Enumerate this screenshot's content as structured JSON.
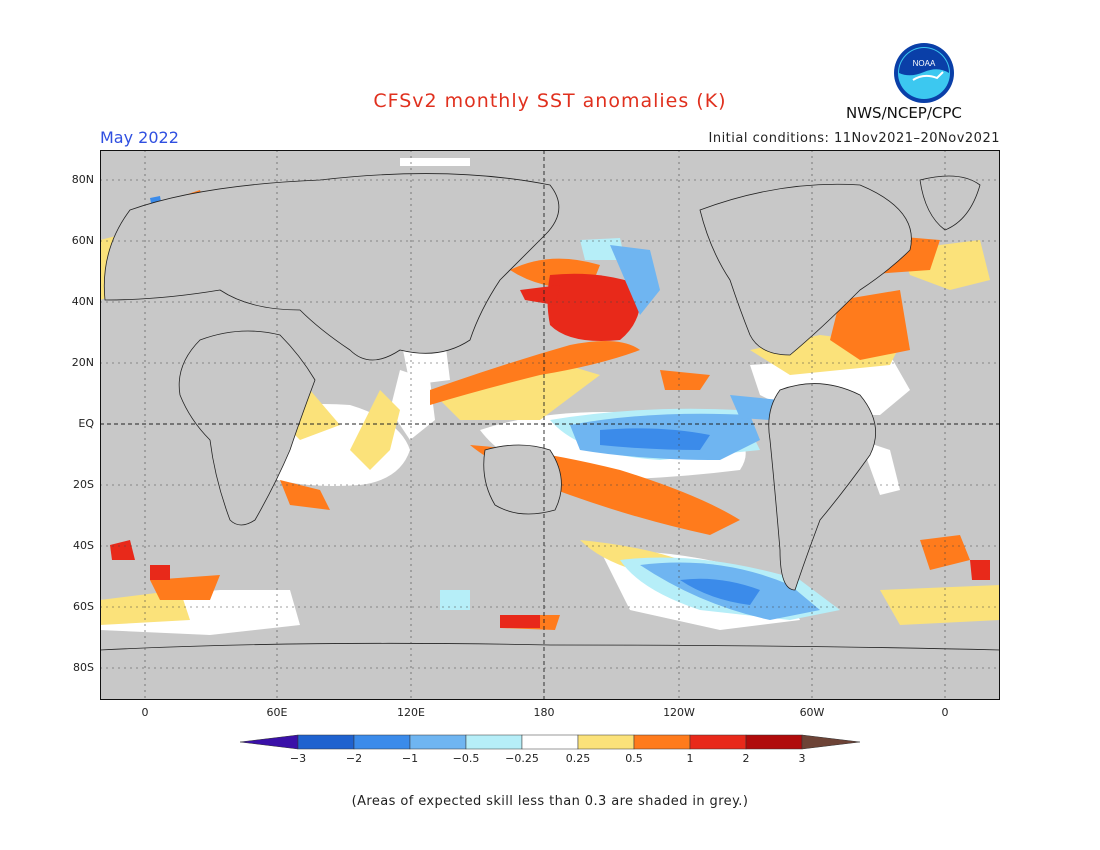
{
  "header": {
    "title": "CFSv2 monthly SST anomalies (K)",
    "target_month": "May 2022",
    "initial_conditions": "Initial conditions: 11Nov2021–20Nov2021",
    "agency": "NWS/NCEP/CPC",
    "logo_text": "NOAA"
  },
  "map": {
    "lat_labels": [
      "80N",
      "60N",
      "40N",
      "20N",
      "EQ",
      "20S",
      "40S",
      "60S",
      "80S"
    ],
    "lon_labels": [
      "0",
      "60E",
      "120E",
      "180",
      "120W",
      "60W",
      "0"
    ]
  },
  "colorbar": {
    "levels": [
      "-3",
      "-2",
      "-1",
      "-0.5",
      "-0.25",
      "0.25",
      "0.5",
      "1",
      "2",
      "3"
    ],
    "colors": [
      "#3a10a8",
      "#1f62cf",
      "#3b8bea",
      "#6fb5f1",
      "#b6eef8",
      "#ffffff",
      "#fbe27a",
      "#ff7b1c",
      "#e8291a",
      "#b00b0b",
      "#6d4336"
    ]
  },
  "footnote": "(Areas of expected skill less than 0.3 are shaded in grey.)"
}
